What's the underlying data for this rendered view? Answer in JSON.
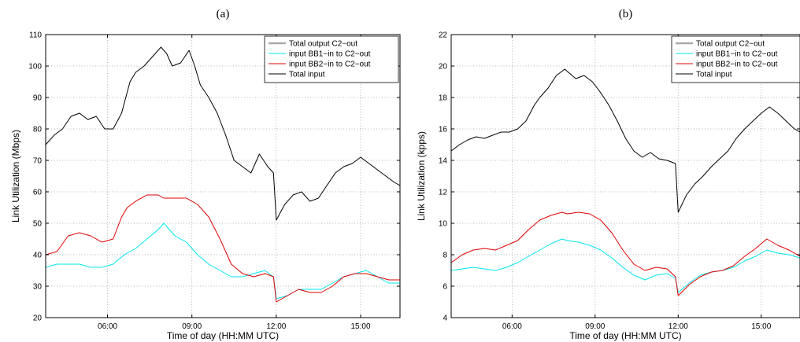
{
  "colors": {
    "total_output": "#a9a9a9",
    "input_bb1": "#00e5ee",
    "input_bb2": "#e00000",
    "total_input": "#000000",
    "grid": "#999999"
  },
  "chart_data": [
    {
      "type": "line",
      "title": "(a)",
      "xlabel": "Time of day (HH:MM UTC)",
      "ylabel": "Link Utilization (Mbps)",
      "xlim": [
        3.8,
        16.4
      ],
      "ylim": [
        20,
        110
      ],
      "xticks": [
        6,
        9,
        12,
        15
      ],
      "xtick_labels": [
        "06:00",
        "09:00",
        "12:00",
        "15:00"
      ],
      "yticks": [
        20,
        30,
        40,
        50,
        60,
        70,
        80,
        90,
        100,
        110
      ],
      "grid": true,
      "legend_position": "top-right",
      "series": [
        {
          "name": "Total output C2−out",
          "color_key": "total_output",
          "width": 2.5,
          "x": [],
          "y": []
        },
        {
          "name": "input BB1−in to C2−out",
          "color_key": "input_bb1",
          "width": 1,
          "x": [
            3.8,
            4.2,
            4.6,
            5.0,
            5.4,
            5.8,
            6.2,
            6.6,
            7.0,
            7.4,
            7.8,
            8.0,
            8.4,
            8.8,
            9.2,
            9.6,
            10.0,
            10.4,
            10.8,
            11.2,
            11.6,
            11.9,
            12.0,
            12.4,
            12.8,
            13.2,
            13.6,
            14.0,
            14.4,
            14.8,
            15.2,
            15.6,
            16.0,
            16.4
          ],
          "y": [
            36,
            37,
            37,
            37,
            36,
            36,
            37,
            40,
            42,
            45,
            48,
            50,
            46,
            44,
            40,
            37,
            35,
            33,
            33,
            34,
            35,
            33,
            26,
            27,
            29,
            29,
            29,
            31,
            33,
            34,
            35,
            33,
            31,
            31
          ]
        },
        {
          "name": "input BB2−in to C2−out",
          "color_key": "input_bb2",
          "width": 1,
          "x": [
            3.8,
            4.2,
            4.6,
            5.0,
            5.4,
            5.8,
            6.2,
            6.5,
            6.7,
            7.0,
            7.4,
            7.8,
            8.0,
            8.4,
            8.8,
            9.2,
            9.6,
            10.0,
            10.4,
            10.8,
            11.2,
            11.6,
            11.9,
            12.0,
            12.4,
            12.8,
            13.2,
            13.6,
            14.0,
            14.4,
            14.8,
            15.2,
            15.6,
            16.0,
            16.4
          ],
          "y": [
            40,
            41,
            46,
            47,
            46,
            44,
            45,
            52,
            55,
            57,
            59,
            59,
            58,
            58,
            58,
            56,
            52,
            45,
            37,
            34,
            33,
            34,
            33,
            25,
            27,
            29,
            28,
            28,
            30,
            33,
            34,
            34,
            33,
            32,
            32
          ]
        },
        {
          "name": "Total input",
          "color_key": "total_input",
          "width": 1,
          "x": [
            3.8,
            4.1,
            4.4,
            4.7,
            5.0,
            5.3,
            5.6,
            5.9,
            6.2,
            6.5,
            6.8,
            7.0,
            7.3,
            7.6,
            7.9,
            8.1,
            8.3,
            8.6,
            8.9,
            9.1,
            9.3,
            9.6,
            9.9,
            10.2,
            10.5,
            10.8,
            11.1,
            11.4,
            11.7,
            11.9,
            12.0,
            12.3,
            12.6,
            12.9,
            13.2,
            13.5,
            13.8,
            14.1,
            14.4,
            14.7,
            15.0,
            15.3,
            15.6,
            15.9,
            16.2,
            16.4
          ],
          "y": [
            75,
            78,
            80,
            84,
            85,
            83,
            84,
            80,
            80,
            85,
            95,
            98,
            100,
            103,
            106,
            104,
            100,
            101,
            105,
            100,
            94,
            90,
            85,
            78,
            70,
            68,
            66,
            72,
            68,
            66,
            51,
            56,
            59,
            60,
            57,
            58,
            62,
            66,
            68,
            69,
            71,
            69,
            67,
            65,
            63,
            62
          ]
        }
      ]
    },
    {
      "type": "line",
      "title": "(b)",
      "xlabel": "Time of day (HH:MM UTC)",
      "ylabel": "Link Utilization (kpps)",
      "xlim": [
        3.8,
        16.4
      ],
      "ylim": [
        4,
        22
      ],
      "xticks": [
        6,
        9,
        12,
        15
      ],
      "xtick_labels": [
        "06:00",
        "09:00",
        "12:00",
        "15:00"
      ],
      "yticks": [
        4,
        6,
        8,
        10,
        12,
        14,
        16,
        18,
        20,
        22
      ],
      "grid": true,
      "legend_position": "top-right",
      "series": [
        {
          "name": "Total output C2−out",
          "color_key": "total_output",
          "width": 2.5,
          "x": [],
          "y": []
        },
        {
          "name": "input BB1−in to C2−out",
          "color_key": "input_bb1",
          "width": 1,
          "x": [
            3.8,
            4.2,
            4.6,
            5.0,
            5.4,
            5.8,
            6.2,
            6.6,
            7.0,
            7.4,
            7.8,
            8.0,
            8.4,
            8.8,
            9.2,
            9.6,
            10.0,
            10.4,
            10.8,
            11.2,
            11.6,
            11.9,
            12.0,
            12.4,
            12.8,
            13.2,
            13.6,
            14.0,
            14.4,
            14.8,
            15.2,
            15.6,
            16.0,
            16.4
          ],
          "y": [
            7,
            7.1,
            7.2,
            7.1,
            7.0,
            7.2,
            7.5,
            7.9,
            8.3,
            8.7,
            9.0,
            8.9,
            8.8,
            8.6,
            8.3,
            7.8,
            7.2,
            6.7,
            6.4,
            6.7,
            6.8,
            6.5,
            5.6,
            6.2,
            6.7,
            6.9,
            7.0,
            7.2,
            7.6,
            7.9,
            8.3,
            8.1,
            8.0,
            7.8
          ]
        },
        {
          "name": "input BB2−in to C2−out",
          "color_key": "input_bb2",
          "width": 1,
          "x": [
            3.8,
            4.2,
            4.6,
            5.0,
            5.4,
            5.8,
            6.2,
            6.6,
            7.0,
            7.4,
            7.8,
            8.0,
            8.4,
            8.8,
            9.2,
            9.6,
            10.0,
            10.4,
            10.8,
            11.2,
            11.6,
            11.9,
            12.0,
            12.4,
            12.8,
            13.2,
            13.6,
            14.0,
            14.4,
            14.8,
            15.2,
            15.6,
            16.0,
            16.4
          ],
          "y": [
            7.5,
            8.0,
            8.3,
            8.4,
            8.3,
            8.6,
            8.9,
            9.6,
            10.2,
            10.5,
            10.7,
            10.6,
            10.7,
            10.6,
            10.2,
            9.4,
            8.3,
            7.4,
            7.0,
            7.2,
            7.1,
            6.6,
            5.4,
            6.1,
            6.6,
            6.9,
            7.0,
            7.3,
            7.9,
            8.4,
            9.0,
            8.6,
            8.3,
            7.9
          ]
        },
        {
          "name": "Total input",
          "color_key": "total_input",
          "width": 1,
          "x": [
            3.8,
            4.1,
            4.4,
            4.7,
            5.0,
            5.3,
            5.6,
            5.9,
            6.2,
            6.5,
            6.8,
            7.0,
            7.3,
            7.6,
            7.9,
            8.1,
            8.3,
            8.6,
            8.9,
            9.2,
            9.5,
            9.8,
            10.1,
            10.4,
            10.7,
            11.0,
            11.3,
            11.6,
            11.9,
            12.0,
            12.3,
            12.6,
            12.9,
            13.2,
            13.5,
            13.8,
            14.1,
            14.4,
            14.7,
            15.0,
            15.3,
            15.6,
            15.9,
            16.2,
            16.4
          ],
          "y": [
            14.6,
            15.0,
            15.3,
            15.5,
            15.4,
            15.6,
            15.8,
            15.8,
            16.0,
            16.5,
            17.5,
            18.0,
            18.6,
            19.4,
            19.8,
            19.5,
            19.2,
            19.4,
            19.0,
            18.3,
            17.5,
            16.5,
            15.4,
            14.6,
            14.2,
            14.5,
            14.1,
            14.0,
            13.8,
            10.7,
            11.8,
            12.5,
            13.0,
            13.6,
            14.1,
            14.6,
            15.4,
            16.0,
            16.5,
            17.0,
            17.4,
            17.0,
            16.5,
            16.0,
            15.8
          ]
        }
      ]
    }
  ]
}
